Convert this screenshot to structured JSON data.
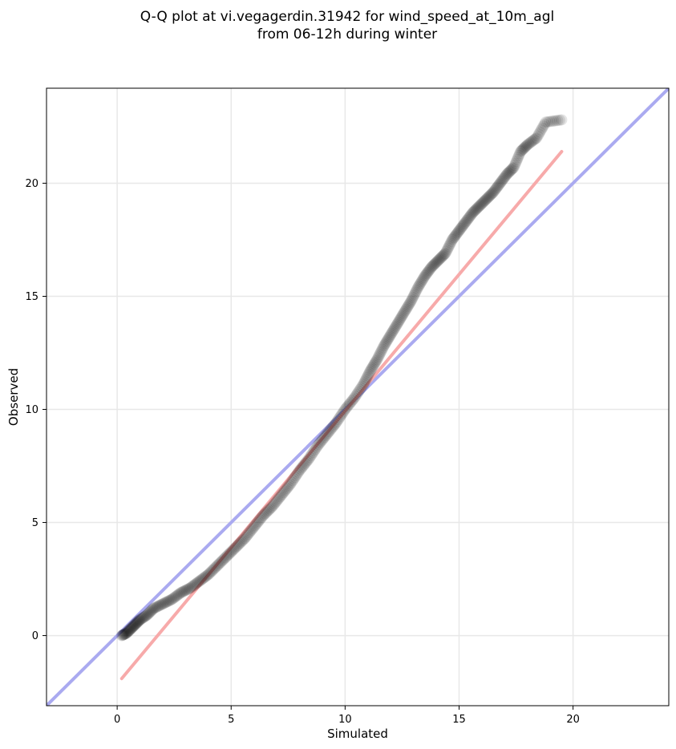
{
  "chart_data": {
    "type": "scatter",
    "title_lines": [
      "Q-Q plot at vi.vegagerdin.31942 for wind_speed_at_10m_agl",
      "from 06-12h during winter"
    ],
    "xlabel": "Simulated",
    "ylabel": "Observed",
    "xlim": [
      -3.1,
      24.2
    ],
    "ylim": [
      -3.1,
      24.2
    ],
    "xticks": [
      0,
      5,
      10,
      15,
      20
    ],
    "yticks": [
      0,
      5,
      10,
      15,
      20
    ],
    "grid": true,
    "colors": {
      "points": "#000000",
      "identity_line": "#aaaaf0",
      "fit_line": "#f7aaaa",
      "axes": "#000000",
      "grid": "#e8e8e8"
    },
    "identity_line": {
      "x": [
        -3.1,
        24.2
      ],
      "y": [
        -3.1,
        24.2
      ]
    },
    "fit_line": {
      "x": [
        0.2,
        19.5
      ],
      "y": [
        -1.9,
        21.4
      ]
    },
    "series": [
      {
        "points": {
          "x": [
            0.2,
            0.4,
            0.6,
            0.8,
            1.0,
            1.3,
            1.6,
            2.0,
            2.4,
            2.8,
            3.2,
            3.6,
            4.0,
            4.4,
            4.8,
            5.2,
            5.6,
            6.0,
            6.4,
            6.8,
            7.2,
            7.6,
            8.0,
            8.4,
            8.8,
            9.2,
            9.6,
            10.0,
            10.4,
            10.8,
            11.1,
            11.4,
            11.7,
            12.0,
            12.3,
            12.6,
            12.9,
            13.2,
            13.5,
            13.8,
            14.1,
            14.4,
            14.7,
            15.0,
            15.3,
            15.6,
            15.9,
            16.2,
            16.5,
            16.8,
            17.1,
            17.4,
            17.7,
            18.0,
            18.4,
            18.8,
            19.5
          ],
          "y": [
            0.0,
            0.1,
            0.3,
            0.5,
            0.7,
            0.9,
            1.2,
            1.4,
            1.6,
            1.9,
            2.1,
            2.4,
            2.7,
            3.1,
            3.5,
            3.9,
            4.3,
            4.8,
            5.3,
            5.7,
            6.2,
            6.7,
            7.3,
            7.8,
            8.4,
            8.9,
            9.4,
            10.0,
            10.5,
            11.1,
            11.7,
            12.2,
            12.8,
            13.3,
            13.8,
            14.3,
            14.8,
            15.4,
            15.9,
            16.3,
            16.6,
            16.9,
            17.5,
            17.9,
            18.3,
            18.7,
            19.0,
            19.3,
            19.6,
            20.0,
            20.4,
            20.7,
            21.4,
            21.7,
            22.0,
            22.7,
            22.8
          ]
        }
      }
    ]
  }
}
